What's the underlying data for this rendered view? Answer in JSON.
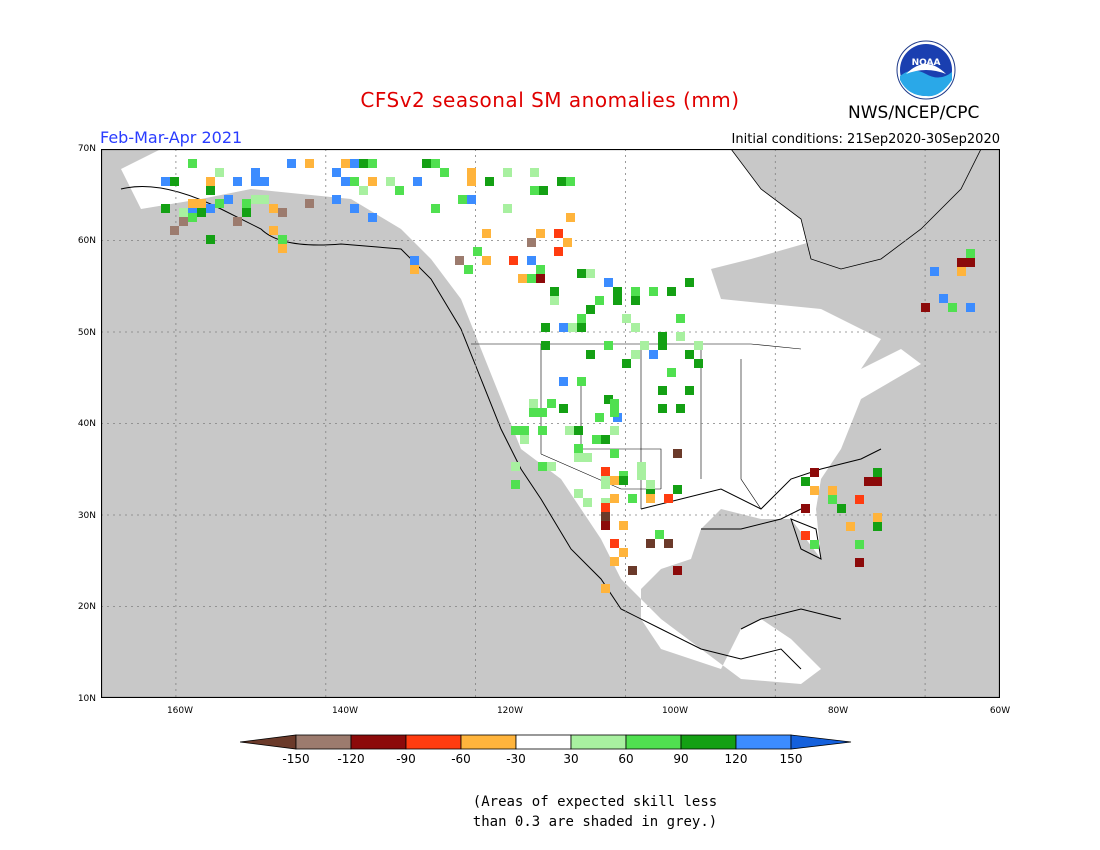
{
  "header": {
    "title": "CFSv2 seasonal SM anomalies (mm)",
    "period": "Feb-Mar-Apr 2021",
    "initial_conditions": "Initial conditions: 21Sep2020-30Sep2020",
    "agency": "NWS/NCEP/CPC",
    "logo_text": "NOAA"
  },
  "map": {
    "lat_labels": [
      "70N",
      "60N",
      "50N",
      "40N",
      "30N",
      "20N",
      "10N"
    ],
    "lon_labels": [
      "160W",
      "140W",
      "120W",
      "100W",
      "80W",
      "60W"
    ],
    "grey_meaning": "low skill"
  },
  "legend": {
    "tick_labels": [
      "-150",
      "-120",
      "-90",
      "-60",
      "-30",
      "30",
      "60",
      "90",
      "120",
      "150"
    ],
    "colors": [
      "#6b3a2a",
      "#9c7b6e",
      "#8c0a0a",
      "#ff3c10",
      "#ffb43c",
      "#ffffff",
      "#a8f0a0",
      "#50e050",
      "#14a014",
      "#3c8cff",
      "#1460dc"
    ]
  },
  "note": {
    "line1": "(Areas of expected skill less",
    "line2": "than 0.3 are shaded in grey.)"
  }
}
